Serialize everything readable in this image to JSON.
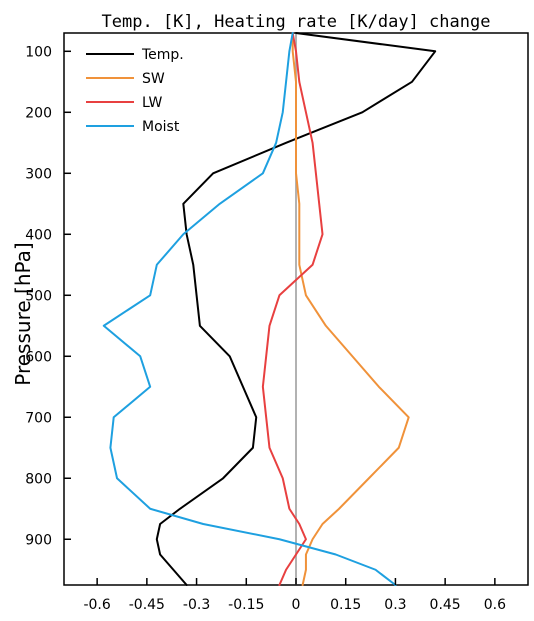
{
  "chart_data": {
    "type": "line",
    "title": "Temp. [K], Heating rate [K/day] change",
    "xlabel": "",
    "ylabel": "Pressure [hPa]",
    "xlim": [
      -0.7,
      0.7
    ],
    "ylim": [
      975,
      70
    ],
    "y_inverted": true,
    "xticks": [
      -0.6,
      -0.45,
      -0.3,
      -0.15,
      0,
      0.15,
      0.3,
      0.45,
      0.6
    ],
    "xtick_labels": [
      "-0.6",
      "-0.45",
      "-0.3",
      "-0.15",
      "0",
      "0.15",
      "0.3",
      "0.45",
      "0.6"
    ],
    "yticks": [
      100,
      200,
      300,
      400,
      500,
      600,
      700,
      800,
      900
    ],
    "ytick_labels": [
      "100",
      "200",
      "300",
      "400",
      "500",
      "600",
      "700",
      "800",
      "900"
    ],
    "zero_line": {
      "x": 0,
      "color": "#aaaaaa"
    },
    "grid": false,
    "legend_position": "top-left",
    "series": [
      {
        "name": "Temp.",
        "color": "#000000",
        "points": [
          [
            0.0,
            70
          ],
          [
            0.42,
            100
          ],
          [
            0.35,
            150
          ],
          [
            0.2,
            200
          ],
          [
            -0.03,
            250
          ],
          [
            -0.25,
            300
          ],
          [
            -0.34,
            350
          ],
          [
            -0.33,
            400
          ],
          [
            -0.31,
            450
          ],
          [
            -0.3,
            500
          ],
          [
            -0.29,
            550
          ],
          [
            -0.2,
            600
          ],
          [
            -0.16,
            650
          ],
          [
            -0.12,
            700
          ],
          [
            -0.13,
            750
          ],
          [
            -0.22,
            800
          ],
          [
            -0.35,
            850
          ],
          [
            -0.41,
            875
          ],
          [
            -0.42,
            900
          ],
          [
            -0.41,
            925
          ],
          [
            -0.37,
            950
          ],
          [
            -0.33,
            975
          ]
        ]
      },
      {
        "name": "SW",
        "color": "#f0923a",
        "points": [
          [
            -0.01,
            70
          ],
          [
            -0.01,
            100
          ],
          [
            0.0,
            150
          ],
          [
            0.0,
            200
          ],
          [
            0.0,
            250
          ],
          [
            0.0,
            300
          ],
          [
            0.01,
            350
          ],
          [
            0.01,
            400
          ],
          [
            0.01,
            450
          ],
          [
            0.03,
            500
          ],
          [
            0.09,
            550
          ],
          [
            0.17,
            600
          ],
          [
            0.25,
            650
          ],
          [
            0.34,
            700
          ],
          [
            0.31,
            750
          ],
          [
            0.22,
            800
          ],
          [
            0.13,
            850
          ],
          [
            0.08,
            875
          ],
          [
            0.05,
            900
          ],
          [
            0.03,
            925
          ],
          [
            0.03,
            950
          ],
          [
            0.02,
            975
          ]
        ]
      },
      {
        "name": "LW",
        "color": "#e84040",
        "points": [
          [
            -0.01,
            70
          ],
          [
            0.0,
            100
          ],
          [
            0.01,
            150
          ],
          [
            0.03,
            200
          ],
          [
            0.05,
            250
          ],
          [
            0.06,
            300
          ],
          [
            0.07,
            350
          ],
          [
            0.08,
            400
          ],
          [
            0.05,
            450
          ],
          [
            -0.05,
            500
          ],
          [
            -0.08,
            550
          ],
          [
            -0.09,
            600
          ],
          [
            -0.1,
            650
          ],
          [
            -0.09,
            700
          ],
          [
            -0.08,
            750
          ],
          [
            -0.04,
            800
          ],
          [
            -0.02,
            850
          ],
          [
            0.01,
            875
          ],
          [
            0.03,
            900
          ],
          [
            0.0,
            925
          ],
          [
            -0.03,
            950
          ],
          [
            -0.05,
            975
          ]
        ]
      },
      {
        "name": "Moist",
        "color": "#1ea0e0",
        "points": [
          [
            -0.01,
            70
          ],
          [
            -0.02,
            100
          ],
          [
            -0.03,
            150
          ],
          [
            -0.04,
            200
          ],
          [
            -0.06,
            250
          ],
          [
            -0.1,
            300
          ],
          [
            -0.23,
            350
          ],
          [
            -0.34,
            400
          ],
          [
            -0.42,
            450
          ],
          [
            -0.44,
            500
          ],
          [
            -0.58,
            550
          ],
          [
            -0.47,
            600
          ],
          [
            -0.44,
            650
          ],
          [
            -0.55,
            700
          ],
          [
            -0.56,
            750
          ],
          [
            -0.54,
            800
          ],
          [
            -0.44,
            850
          ],
          [
            -0.28,
            875
          ],
          [
            -0.05,
            900
          ],
          [
            0.12,
            925
          ],
          [
            0.24,
            950
          ],
          [
            0.3,
            975
          ]
        ]
      }
    ]
  }
}
